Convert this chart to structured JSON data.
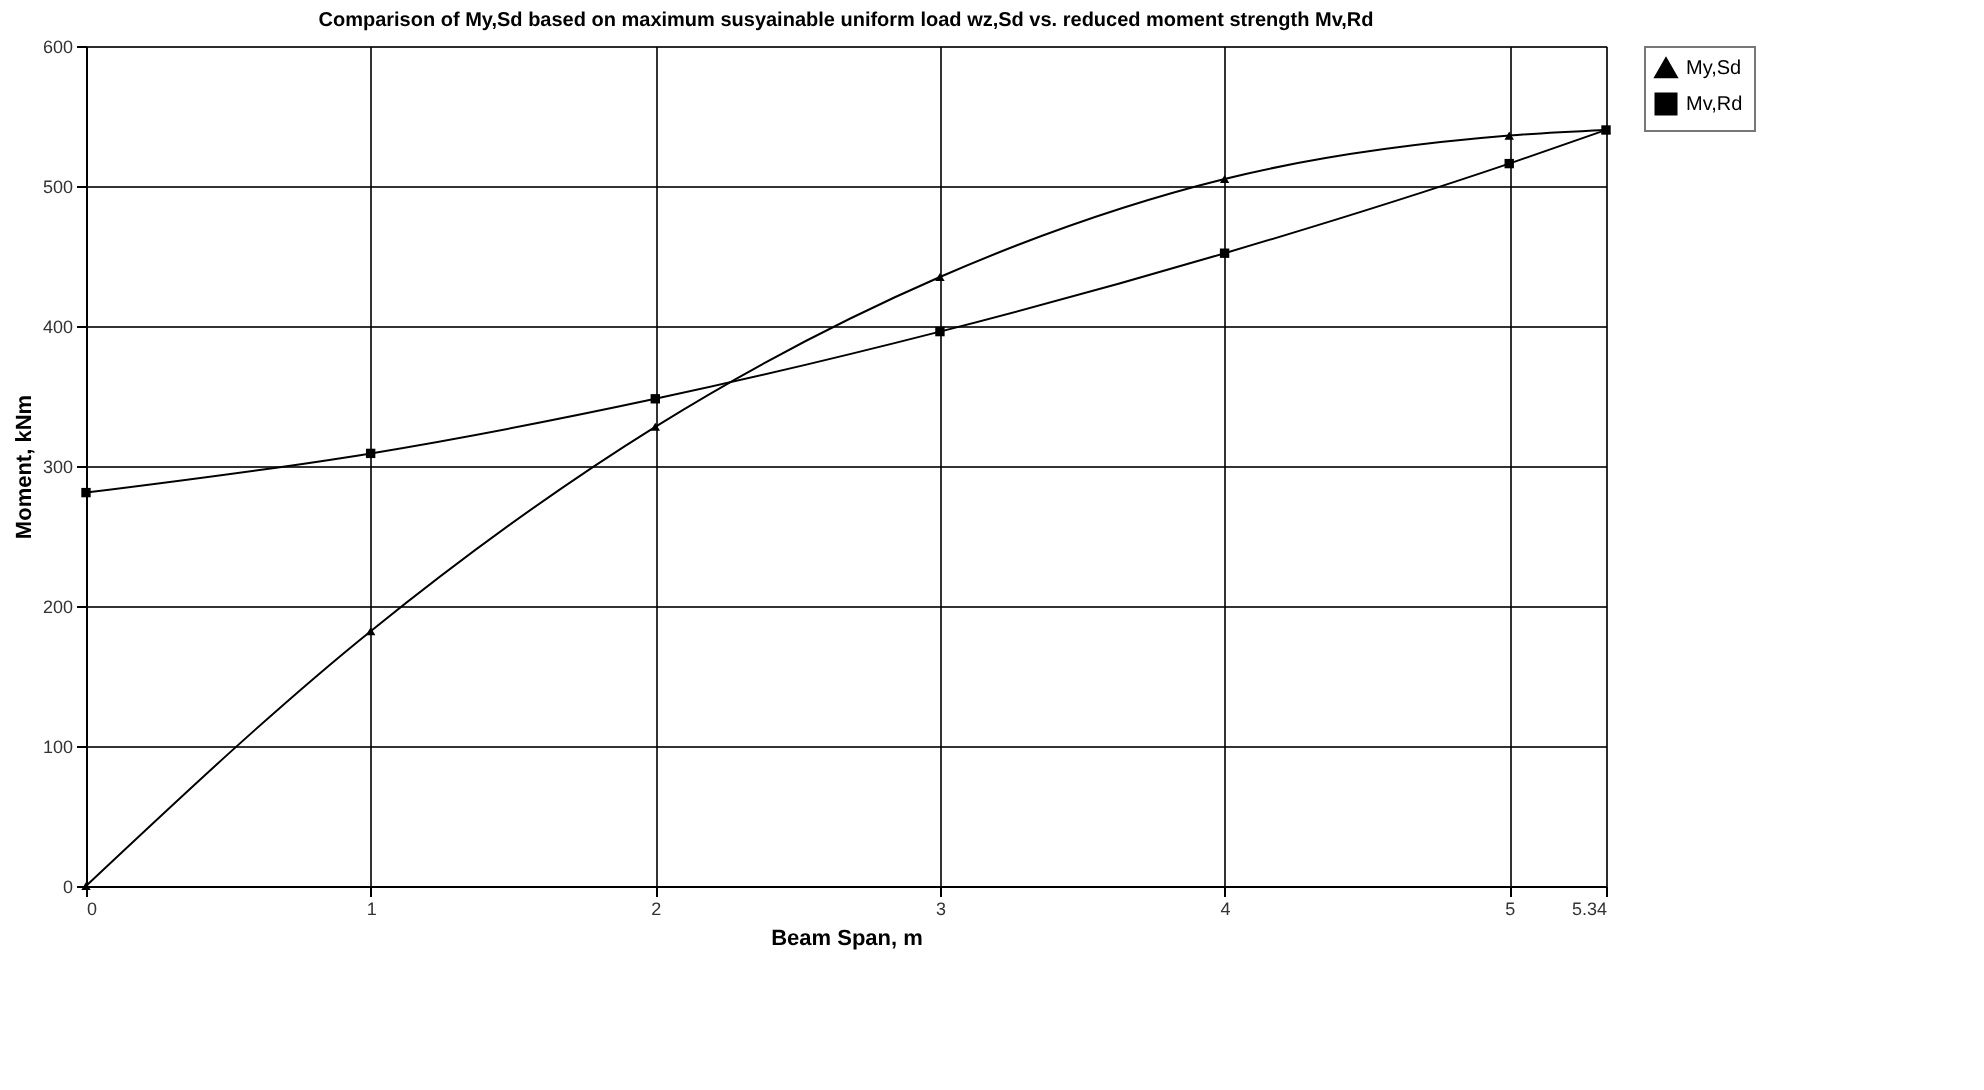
{
  "chart_data": {
    "type": "line",
    "title": "Comparison of My,Sd based on maximum susyainable uniform load wz,Sd vs. reduced moment strength Mv,Rd",
    "xlabel": "Beam Span, m",
    "ylabel": "Moment, kNm",
    "x": [
      0,
      1,
      2,
      3,
      4,
      5,
      5.34
    ],
    "series": [
      {
        "name": "My,Sd",
        "color": "#000000",
        "marker": "triangle",
        "values": [
          0,
          182,
          328,
          435,
          505,
          536,
          540
        ]
      },
      {
        "name": "Mv,Rd",
        "color": "#000000",
        "marker": "square",
        "values": [
          281,
          309,
          348,
          396,
          452,
          516,
          540
        ]
      }
    ],
    "xlim": [
      0,
      5.34
    ],
    "xticks": [
      0,
      1,
      2,
      3,
      4,
      5,
      5.34
    ],
    "ylim": [
      0,
      600
    ],
    "yticks": [
      0,
      100,
      200,
      300,
      400,
      500,
      600
    ],
    "grid": true,
    "legend": "right",
    "line_style": "solid"
  }
}
